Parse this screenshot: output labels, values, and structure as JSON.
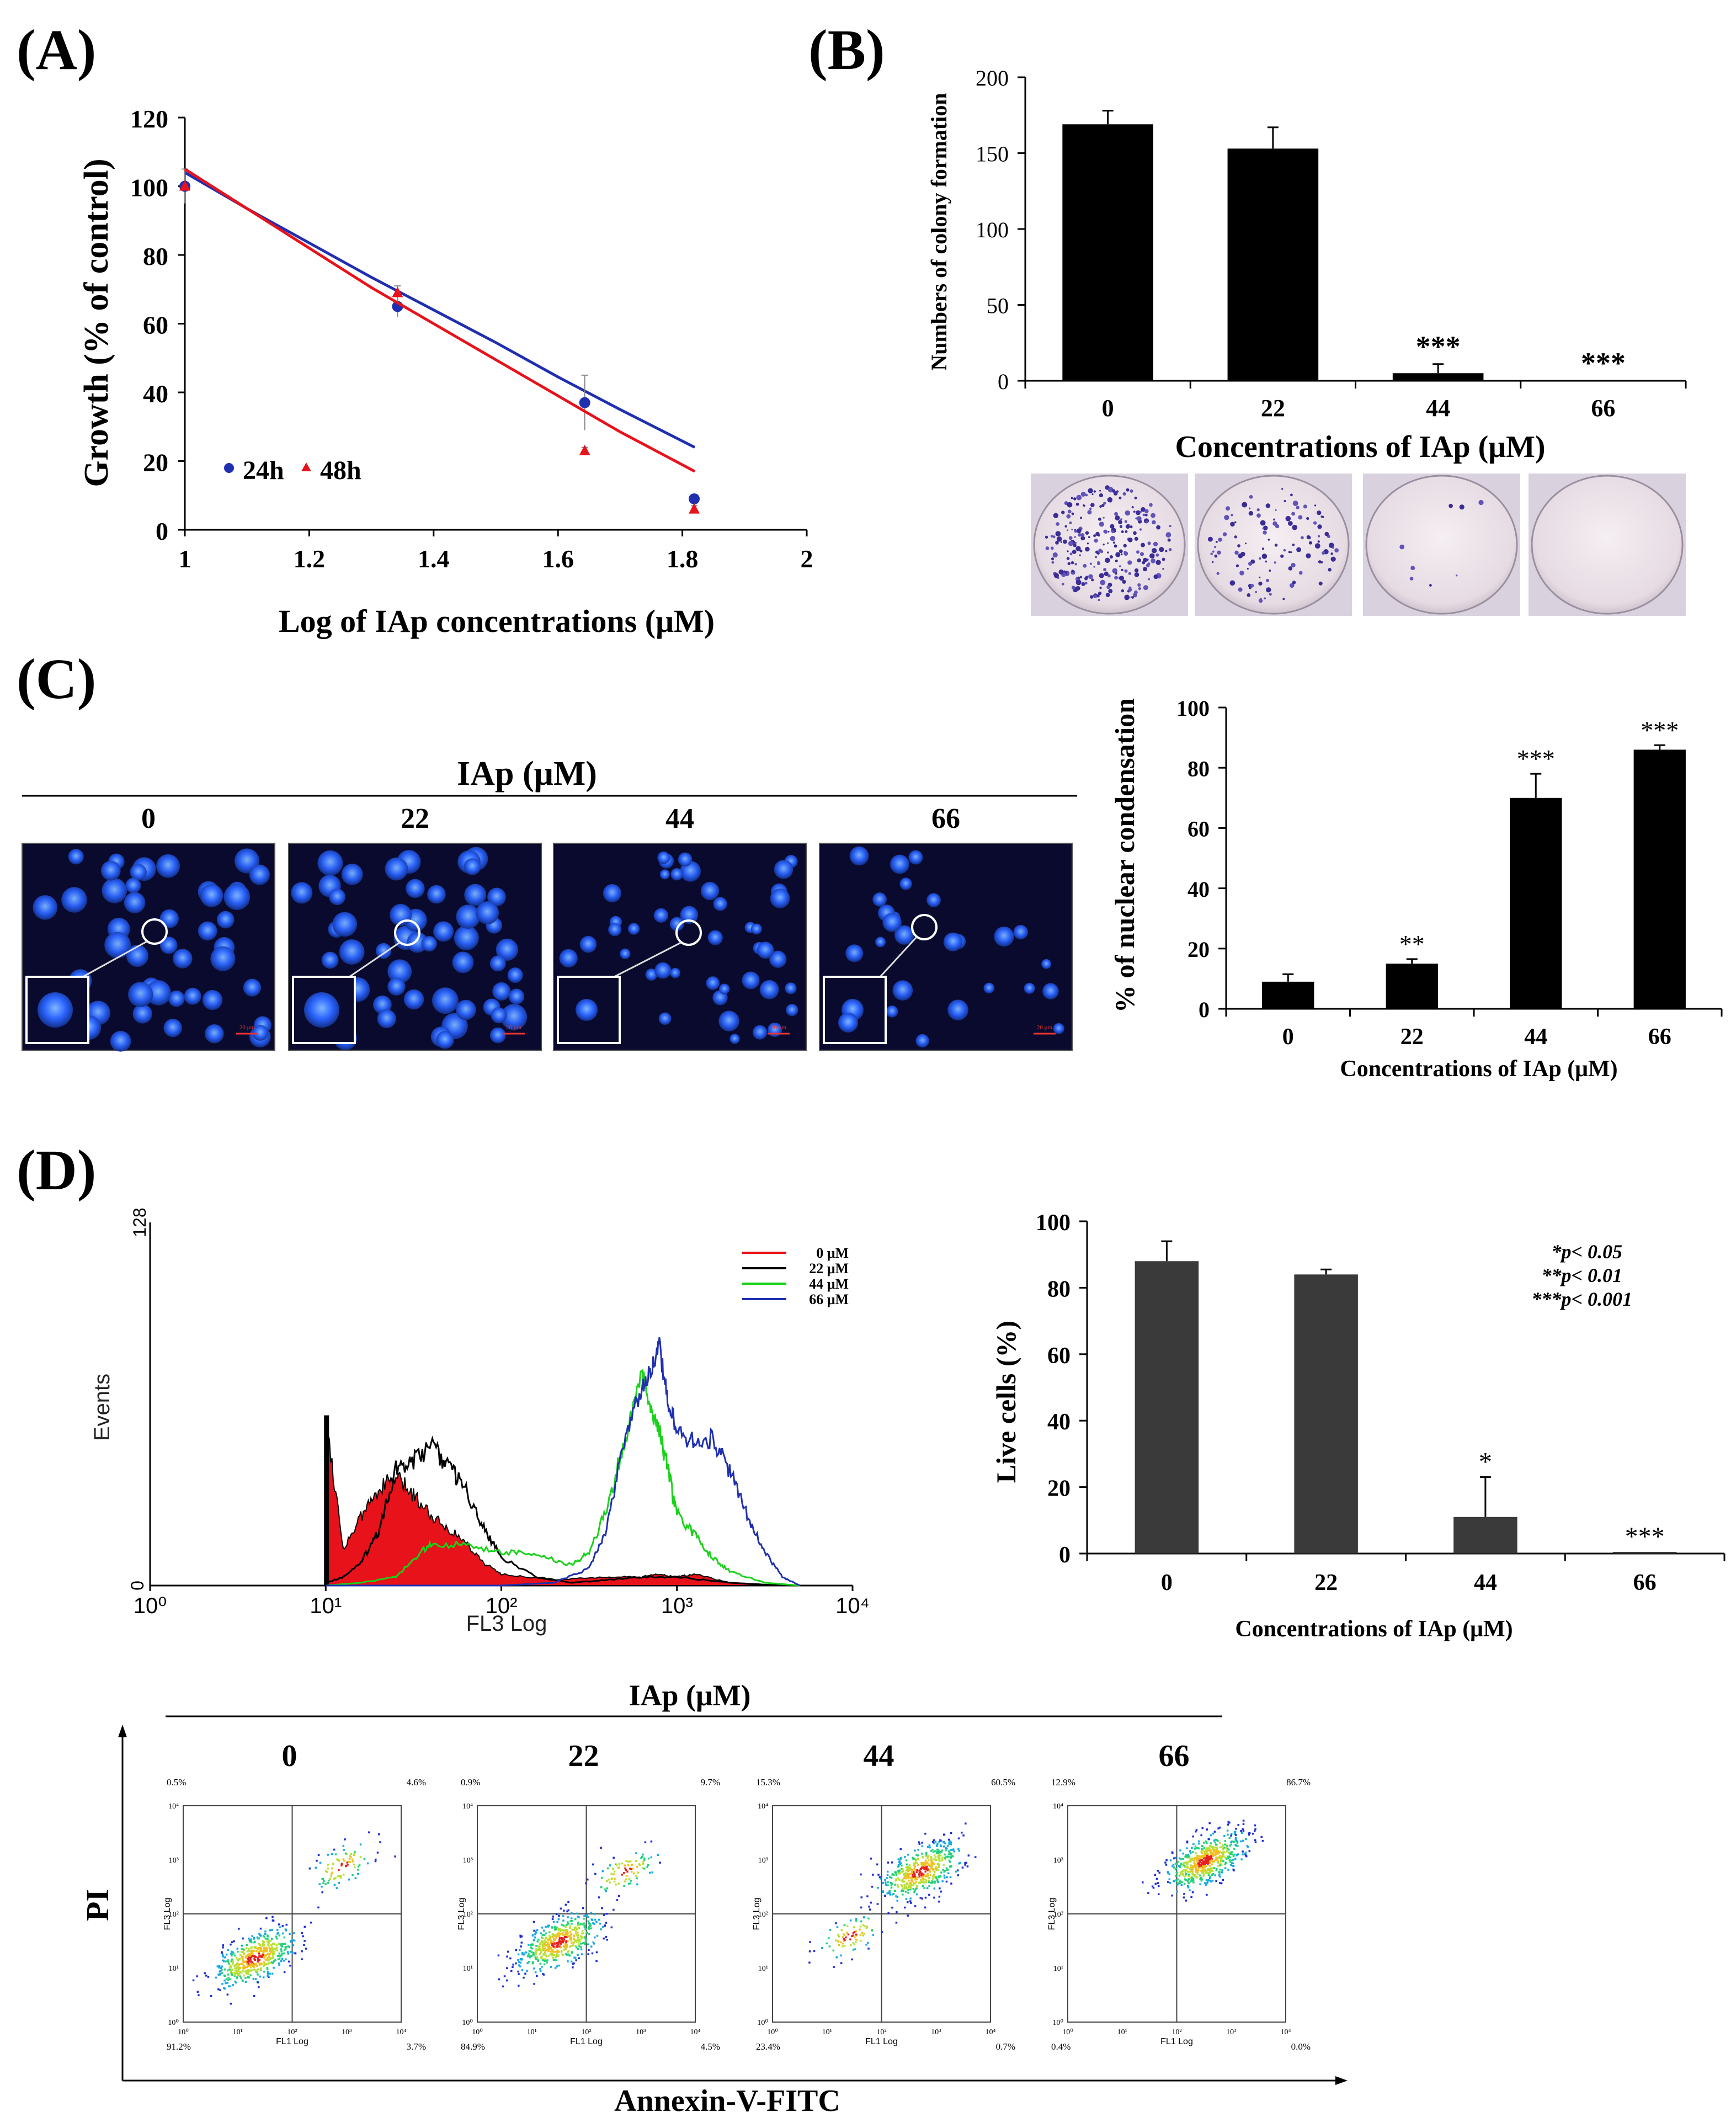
{
  "figure": {
    "panel_labels": [
      "(A)",
      "(B)",
      "(C)",
      "(D)"
    ]
  },
  "colors": {
    "blue": "#1f2fb0",
    "red": "#e8121b",
    "green": "#19d219",
    "black": "#000000",
    "bar_black": "#000000",
    "bar_gray": "#3a3a3a",
    "nucleus_bg": "#0a0a2e",
    "nucleus": "#2a63ff"
  },
  "chart_data": [
    {
      "id": "A",
      "type": "scatter",
      "title": "",
      "xlabel": "Log of IAp concentrations (μM)",
      "ylabel": "Growth (% of control)",
      "xlim": [
        1,
        2
      ],
      "ylim": [
        0,
        120
      ],
      "xticks": [
        "1",
        "1.2",
        "1.4",
        "1.6",
        "1.8",
        "2"
      ],
      "yticks": [
        "0",
        "20",
        "40",
        "60",
        "80",
        "100",
        "120"
      ],
      "legend": [
        "24h",
        "48h"
      ],
      "series": [
        {
          "name": "24h",
          "color": "#1f2fb0",
          "x": [
            1.0,
            1.342,
            1.643,
            1.819
          ],
          "y": [
            100,
            65,
            37,
            9
          ],
          "err": [
            5,
            3,
            8,
            1
          ],
          "fit_x": [
            1.0,
            1.1,
            1.2,
            1.3,
            1.4,
            1.5,
            1.6,
            1.7,
            1.82
          ],
          "fit_y": [
            104,
            93.5,
            83.5,
            73.5,
            64,
            54.5,
            44.5,
            35,
            24
          ]
        },
        {
          "name": "48h",
          "color": "#e8121b",
          "x": [
            1.0,
            1.342,
            1.643,
            1.819
          ],
          "y": [
            100,
            69,
            23,
            6
          ],
          "err": [
            0,
            2,
            1,
            1
          ],
          "fit_x": [
            1.0,
            1.1,
            1.2,
            1.3,
            1.4,
            1.5,
            1.6,
            1.7,
            1.82
          ],
          "fit_y": [
            105,
            93.5,
            82,
            70.5,
            60,
            49.5,
            39,
            28.5,
            17
          ]
        }
      ]
    },
    {
      "id": "B",
      "type": "bar",
      "xlabel": "Concentrations of IAp (μM)",
      "ylabel": "Numbers of colony formation",
      "ylim": [
        0,
        200
      ],
      "yticks": [
        "0",
        "50",
        "100",
        "150",
        "200"
      ],
      "categories": [
        "0",
        "22",
        "44",
        "66"
      ],
      "values": [
        169,
        153,
        5,
        0
      ],
      "errors": [
        9,
        14,
        6,
        0
      ],
      "annotations": [
        "",
        "",
        "***",
        "***"
      ]
    },
    {
      "id": "C",
      "type": "bar",
      "xlabel": "Concentrations of IAp (μM)",
      "ylabel": "% of nuclear condensation",
      "ylim": [
        0,
        100
      ],
      "yticks": [
        "0",
        "20",
        "40",
        "60",
        "80",
        "100"
      ],
      "categories": [
        "0",
        "22",
        "44",
        "66"
      ],
      "values": [
        9,
        15,
        70,
        86
      ],
      "errors": [
        2.5,
        1.5,
        8,
        1.5
      ],
      "annotations": [
        "",
        "**",
        "***",
        "***"
      ]
    },
    {
      "id": "D-hist",
      "type": "area",
      "xlabel": "FL3 Log",
      "ylabel": "Events",
      "ylim": [
        0,
        128
      ],
      "yticks": [
        "0",
        "128"
      ],
      "xticks": [
        "10⁰",
        "10¹",
        "10²",
        "10³",
        "10⁴"
      ],
      "legend_position": "top-right",
      "series": [
        {
          "name": "0 μM",
          "color": "#e8121b",
          "filled": true,
          "x": [
            1.0,
            1.1,
            1.2,
            1.3,
            1.4,
            1.5,
            1.6,
            1.7,
            1.8,
            1.9,
            2.0,
            2.3,
            2.6,
            2.8,
            2.9,
            3.0,
            3.1,
            3.3,
            3.5,
            3.7
          ],
          "y": [
            60,
            13,
            24,
            34,
            38,
            32,
            25,
            20,
            15,
            8,
            4,
            2,
            3,
            3,
            4,
            3,
            4,
            1,
            0,
            0
          ]
        },
        {
          "name": "22 μM",
          "color": "#000000",
          "filled": false,
          "x": [
            1.0,
            1.1,
            1.2,
            1.3,
            1.4,
            1.5,
            1.6,
            1.7,
            1.8,
            1.9,
            2.0,
            2.2,
            2.4,
            2.6,
            2.8,
            3.0,
            3.3,
            3.6,
            3.8
          ],
          "y": [
            1,
            3,
            8,
            19,
            41,
            44,
            49,
            42,
            34,
            20,
            10,
            3,
            1,
            2,
            3,
            3,
            1,
            0,
            0
          ]
        },
        {
          "name": "44 μM",
          "color": "#19d219",
          "filled": false,
          "x": [
            1.0,
            1.2,
            1.4,
            1.5,
            1.6,
            1.8,
            2.0,
            2.2,
            2.4,
            2.5,
            2.6,
            2.7,
            2.8,
            2.85,
            2.9,
            2.95,
            3.0,
            3.1,
            3.2,
            3.3,
            3.5,
            3.7
          ],
          "y": [
            0,
            1,
            3,
            9,
            15,
            14,
            12,
            11,
            7,
            12,
            27,
            50,
            75,
            63,
            55,
            40,
            25,
            18,
            10,
            5,
            1,
            0
          ]
        },
        {
          "name": "66 μM",
          "color": "#1f2fb0",
          "filled": false,
          "x": [
            1.0,
            2.0,
            2.3,
            2.5,
            2.6,
            2.7,
            2.8,
            2.85,
            2.9,
            2.95,
            3.0,
            3.1,
            3.2,
            3.3,
            3.4,
            3.5,
            3.6,
            3.7
          ],
          "y": [
            0,
            0,
            1,
            6,
            20,
            52,
            70,
            76,
            84,
            65,
            55,
            50,
            52,
            40,
            25,
            12,
            3,
            0
          ]
        }
      ]
    },
    {
      "id": "D-bar",
      "type": "bar",
      "xlabel": "Concentrations of IAp (μM)",
      "ylabel": "Live cells (%)",
      "ylim": [
        0,
        100
      ],
      "yticks": [
        "0",
        "20",
        "40",
        "60",
        "80",
        "100"
      ],
      "categories": [
        "0",
        "22",
        "44",
        "66"
      ],
      "values": [
        88,
        84,
        11,
        0.5
      ],
      "errors": [
        6,
        1.5,
        12,
        0
      ],
      "annotations": [
        "",
        "",
        "*",
        "***"
      ],
      "legend_notes": [
        "*p< 0.05",
        "**p< 0.01",
        "***p< 0.001"
      ]
    },
    {
      "id": "D-dot",
      "type": "scatter",
      "xlabel": "Annexin-V-FITC",
      "ylabel": "PI",
      "title": "IAp (μM)",
      "axis_x_label": "FL1 Log",
      "axis_y_label": "FL3 Log",
      "ticks": [
        "10⁰",
        "10¹",
        "10²",
        "10³",
        "10⁴"
      ],
      "plots": [
        {
          "concentration": "0",
          "quadrants": [
            "0.5%",
            "4.6%",
            "91.2%",
            "3.7%"
          ],
          "main_cluster": [
            1.3,
            1.2
          ],
          "secondary_cluster": [
            2.9,
            2.9
          ]
        },
        {
          "concentration": "22",
          "quadrants": [
            "0.9%",
            "9.7%",
            "84.9%",
            "4.5%"
          ],
          "main_cluster": [
            1.5,
            1.5
          ],
          "secondary_cluster": [
            2.7,
            2.8
          ]
        },
        {
          "concentration": "44",
          "quadrants": [
            "15.3%",
            "60.5%",
            "23.4%",
            "0.7%"
          ],
          "main_cluster": [
            2.7,
            2.8
          ],
          "secondary_cluster": [
            1.4,
            1.6
          ]
        },
        {
          "concentration": "66",
          "quadrants": [
            "12.9%",
            "86.7%",
            "0.4%",
            "0.0%"
          ],
          "main_cluster": [
            2.5,
            3.0
          ],
          "secondary_cluster": [
            2.5,
            3.0
          ]
        }
      ]
    }
  ],
  "panel_B_images": {
    "concentrations": [
      "0",
      "22",
      "44",
      "66"
    ],
    "colony_density": [
      1.0,
      0.45,
      0.03,
      0
    ]
  },
  "panel_C_images": {
    "title": "IAp (μM)",
    "concentrations": [
      "0",
      "22",
      "44",
      "66"
    ],
    "scale_bar": "20 μm"
  }
}
